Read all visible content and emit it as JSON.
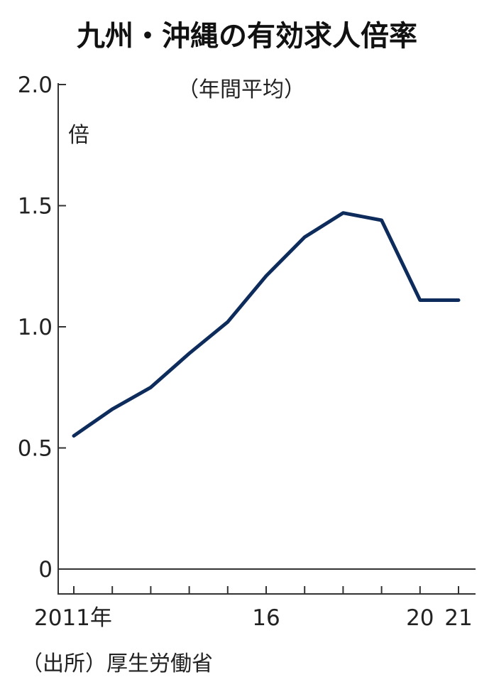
{
  "chart_data": {
    "type": "line",
    "title": "九州・沖縄の有効求人倍率",
    "subtitle": "（年間平均）",
    "ylabel": "倍",
    "source": "（出所）厚生労働省",
    "ylim": [
      0,
      2.0
    ],
    "yticks": [
      0,
      0.5,
      1.0,
      1.5,
      2.0
    ],
    "ytick_labels": [
      "0",
      "0.5",
      "1.0",
      "1.5",
      "2.0"
    ],
    "x": [
      2011,
      2012,
      2013,
      2014,
      2015,
      2016,
      2017,
      2018,
      2019,
      2020,
      2021
    ],
    "xtick_labels": [
      {
        "x": 2011,
        "label": "2011年"
      },
      {
        "x": 2016,
        "label": "16"
      },
      {
        "x": 2020,
        "label": "20"
      },
      {
        "x": 2021,
        "label": "21"
      }
    ],
    "series": [
      {
        "values": [
          0.55,
          0.66,
          0.75,
          0.89,
          1.02,
          1.21,
          1.37,
          1.47,
          1.44,
          1.11,
          1.11
        ]
      }
    ],
    "grid": false,
    "legend": "none",
    "colors": {
      "line": "#0d2c5c"
    }
  }
}
